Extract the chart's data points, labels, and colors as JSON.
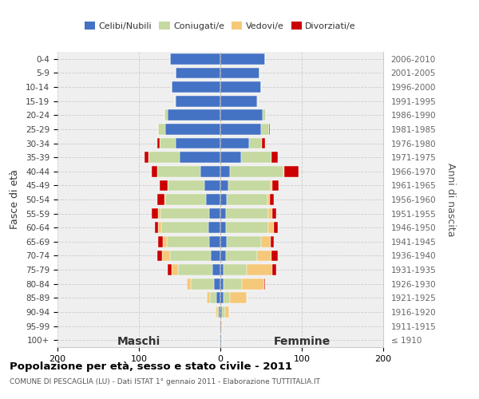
{
  "age_groups": [
    "0-4",
    "5-9",
    "10-14",
    "15-19",
    "20-24",
    "25-29",
    "30-34",
    "35-39",
    "40-44",
    "45-49",
    "50-54",
    "55-59",
    "60-64",
    "65-69",
    "70-74",
    "75-79",
    "80-84",
    "85-89",
    "90-94",
    "95-99",
    "100+"
  ],
  "birth_years": [
    "2006-2010",
    "2001-2005",
    "1996-2000",
    "1991-1995",
    "1986-1990",
    "1981-1985",
    "1976-1980",
    "1971-1975",
    "1966-1970",
    "1961-1965",
    "1956-1960",
    "1951-1955",
    "1946-1950",
    "1941-1945",
    "1936-1940",
    "1931-1935",
    "1926-1930",
    "1921-1925",
    "1916-1920",
    "1911-1915",
    "≤ 1910"
  ],
  "maschi": {
    "celibi": [
      62,
      55,
      60,
      55,
      65,
      68,
      55,
      50,
      25,
      20,
      18,
      14,
      15,
      14,
      12,
      10,
      8,
      5,
      2,
      1,
      1
    ],
    "coniugati": [
      0,
      0,
      0,
      1,
      4,
      8,
      20,
      38,
      52,
      45,
      50,
      60,
      58,
      52,
      50,
      42,
      28,
      8,
      2,
      0,
      0
    ],
    "vedovi": [
      0,
      0,
      0,
      0,
      0,
      0,
      0,
      0,
      0,
      0,
      1,
      2,
      3,
      5,
      10,
      8,
      5,
      4,
      2,
      0,
      0
    ],
    "divorziati": [
      0,
      0,
      0,
      0,
      0,
      0,
      2,
      5,
      7,
      10,
      8,
      8,
      4,
      5,
      5,
      5,
      0,
      0,
      0,
      0,
      0
    ]
  },
  "femmine": {
    "nubili": [
      55,
      48,
      50,
      45,
      52,
      50,
      35,
      25,
      12,
      10,
      8,
      7,
      7,
      8,
      7,
      4,
      4,
      4,
      2,
      1,
      1
    ],
    "coniugate": [
      0,
      0,
      0,
      1,
      4,
      10,
      16,
      38,
      65,
      52,
      50,
      52,
      52,
      42,
      38,
      28,
      22,
      8,
      4,
      1,
      0
    ],
    "vedove": [
      0,
      0,
      0,
      0,
      0,
      0,
      0,
      0,
      1,
      2,
      3,
      5,
      7,
      12,
      18,
      32,
      28,
      20,
      5,
      1,
      1
    ],
    "divorziate": [
      0,
      0,
      0,
      0,
      0,
      1,
      4,
      8,
      18,
      8,
      5,
      5,
      5,
      4,
      8,
      5,
      1,
      0,
      0,
      0,
      0
    ]
  },
  "colors": {
    "celibi_nubili": "#4472c4",
    "coniugati": "#c5d9a0",
    "vedovi": "#f5c87a",
    "divorziati": "#cc0000"
  },
  "title": "Popolazione per età, sesso e stato civile - 2011",
  "subtitle": "COMUNE DI PESCAGLIA (LU) - Dati ISTAT 1° gennaio 2011 - Elaborazione TUTTITALIA.IT",
  "ylabel_left": "Fasce di età",
  "ylabel_right": "Anni di nascita",
  "xlabel_maschi": "Maschi",
  "xlabel_femmine": "Femmine",
  "xlim": 200,
  "legend_labels": [
    "Celibi/Nubili",
    "Coniugati/e",
    "Vedovi/e",
    "Divorziati/e"
  ],
  "bg_color": "#efefef"
}
